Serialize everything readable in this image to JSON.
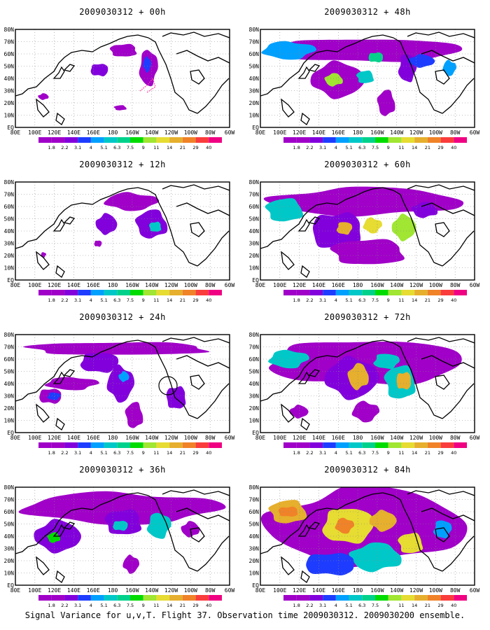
{
  "panels": [
    {
      "title": "2009030312 + 00h",
      "lead": "00h"
    },
    {
      "title": "2009030312 + 48h",
      "lead": "48h"
    },
    {
      "title": "2009030312 + 12h",
      "lead": "12h"
    },
    {
      "title": "2009030312 + 60h",
      "lead": "60h"
    },
    {
      "title": "2009030312 + 24h",
      "lead": "24h"
    },
    {
      "title": "2009030312 + 72h",
      "lead": "72h"
    },
    {
      "title": "2009030312 + 36h",
      "lead": "36h"
    },
    {
      "title": "2009030312 + 84h",
      "lead": "84h"
    }
  ],
  "lon_ticks": [
    "80E",
    "100E",
    "120E",
    "140E",
    "160E",
    "180",
    "160W",
    "140W",
    "120W",
    "100W",
    "80W",
    "60W"
  ],
  "lat_ticks": [
    "80N",
    "70N",
    "60N",
    "50N",
    "40N",
    "30N",
    "20N",
    "10N",
    "EQ"
  ],
  "colorbar": {
    "levels": [
      "1.8",
      "2.2",
      "3.1",
      "4",
      "5.1",
      "6.3",
      "7.5",
      "9",
      "11",
      "14",
      "21",
      "29",
      "40"
    ],
    "colors": [
      "#a000c8",
      "#8200dc",
      "#1e3cff",
      "#00a0ff",
      "#00c8c8",
      "#00d28c",
      "#00dc00",
      "#a0e632",
      "#e6dc32",
      "#e6af2d",
      "#f08228",
      "#fa3c3c",
      "#f00082"
    ]
  },
  "caption": "Signal Variance for u,v,T. Flight 37. Observation time 2009030312. 2009030200 ensemble."
}
